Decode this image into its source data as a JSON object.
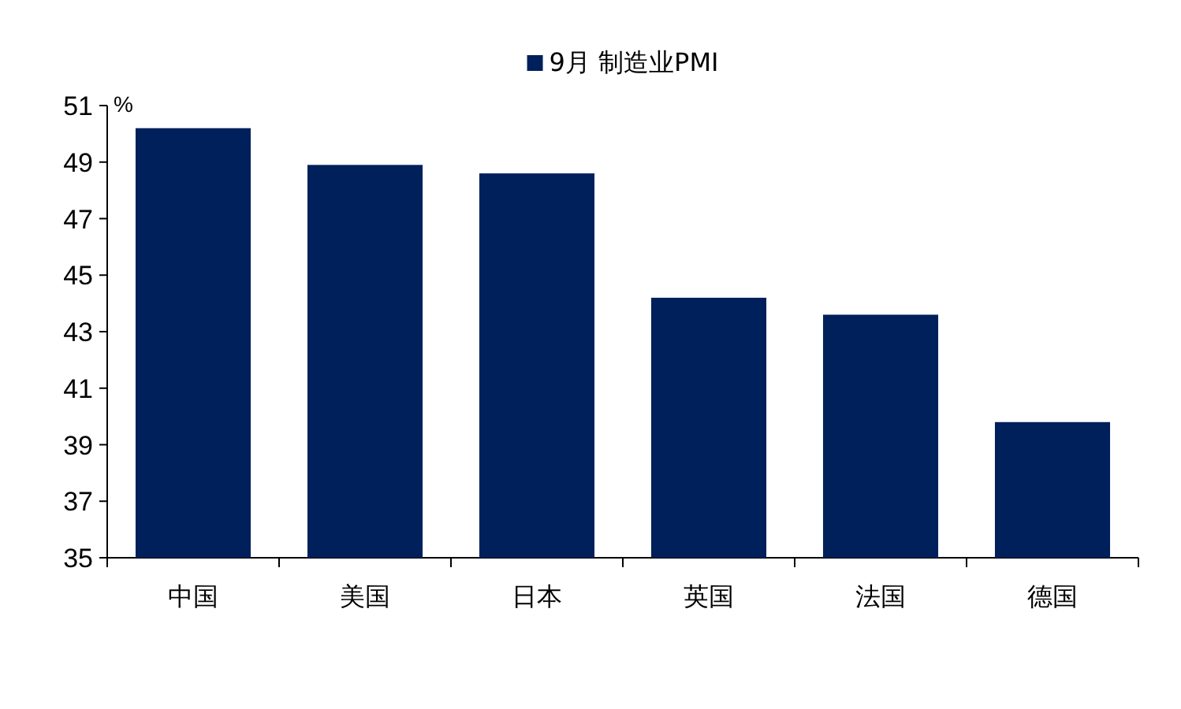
{
  "chart_data": {
    "type": "bar",
    "ylabel": "%",
    "categories": [
      "中国",
      "美国",
      "日本",
      "英国",
      "法国",
      "德国"
    ],
    "series": [
      {
        "name": "9月 制造业PMI",
        "color": "#00205b",
        "values": [
          50.2,
          48.9,
          48.6,
          44.2,
          43.6,
          39.8
        ]
      }
    ],
    "ylim": [
      35,
      51
    ],
    "yticks": [
      35,
      37,
      39,
      41,
      43,
      45,
      47,
      49,
      51
    ],
    "grid": false,
    "legend": "top"
  }
}
